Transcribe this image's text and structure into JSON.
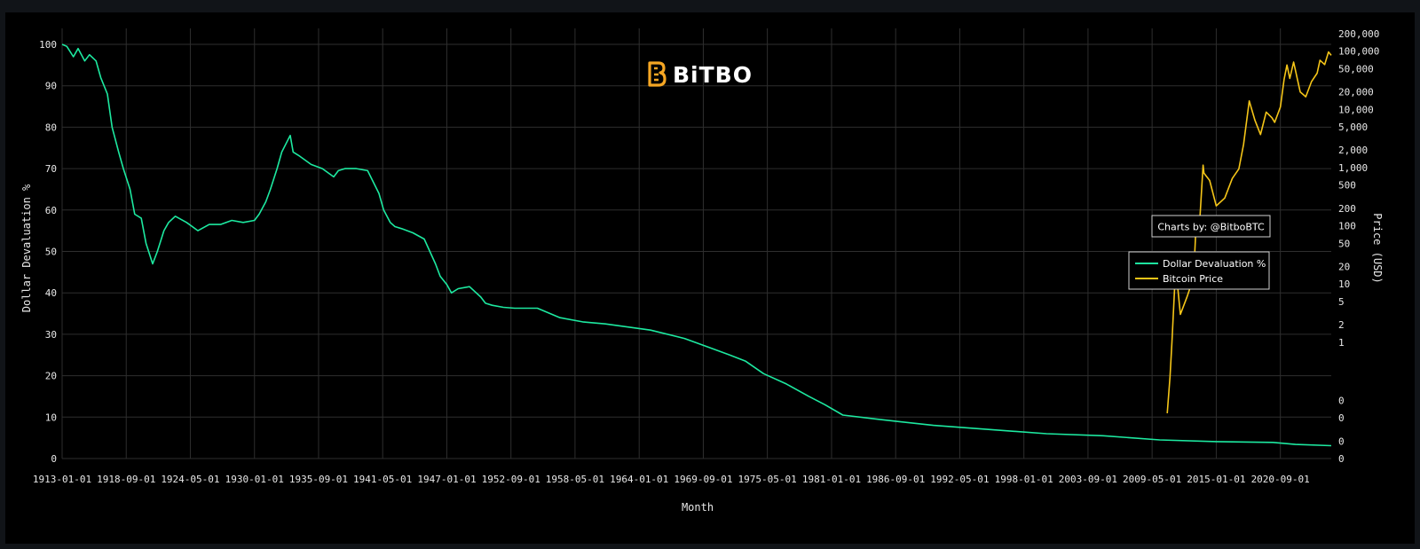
{
  "brand": {
    "name": "BiTBO"
  },
  "credit": "Charts by: @BitboBTC",
  "colors": {
    "background": "#000000",
    "page": "#111418",
    "devaluation": "#1de9a0",
    "bitcoin": "#f5c518",
    "grid": "#2e2e2e",
    "text": "#e8e8e8"
  },
  "chart_data": {
    "type": "line",
    "xlabel": "Month",
    "ylabel": "Dollar Devaluation %",
    "y2label": "Price (USD)",
    "grid": true,
    "legend_position": "right-middle",
    "x_range": [
      "1913-01-01",
      "2025-03-01"
    ],
    "x_ticks": [
      "1913-01-01",
      "1918-09-01",
      "1924-05-01",
      "1930-01-01",
      "1935-09-01",
      "1941-05-01",
      "1947-01-01",
      "1952-09-01",
      "1958-05-01",
      "1964-01-01",
      "1969-09-01",
      "1975-05-01",
      "1981-01-01",
      "1986-09-01",
      "1992-05-01",
      "1998-01-01",
      "2003-09-01",
      "2009-05-01",
      "2015-01-01",
      "2020-09-01"
    ],
    "y_range": [
      0,
      100
    ],
    "y_ticks": [
      "0",
      "10",
      "20",
      "30",
      "40",
      "50",
      "60",
      "70",
      "80",
      "90",
      "100"
    ],
    "y2_scale": "log",
    "y2_ticks": [
      "0",
      "0",
      "0",
      "0",
      "1",
      "2",
      "5",
      "10",
      "20",
      "50",
      "100",
      "200",
      "500",
      "1,000",
      "2,000",
      "5,000",
      "10,000",
      "20,000",
      "50,000",
      "100,000",
      "200,000"
    ],
    "series": [
      {
        "name": "Dollar Devaluation %",
        "axis": "left",
        "x": [
          "1913-01-01",
          "1913-06-01",
          "1914-01-01",
          "1914-06-01",
          "1915-01-01",
          "1915-06-01",
          "1916-01-01",
          "1916-06-01",
          "1917-01-01",
          "1917-06-01",
          "1918-01-01",
          "1918-06-01",
          "1919-01-01",
          "1919-06-01",
          "1920-01-01",
          "1920-06-01",
          "1921-01-01",
          "1921-06-01",
          "1922-01-01",
          "1922-06-01",
          "1923-01-01",
          "1924-01-01",
          "1925-01-01",
          "1926-01-01",
          "1927-01-01",
          "1928-01-01",
          "1929-01-01",
          "1930-01-01",
          "1930-06-01",
          "1931-01-01",
          "1931-06-01",
          "1932-01-01",
          "1932-06-01",
          "1933-03-01",
          "1933-06-01",
          "1934-01-01",
          "1935-01-01",
          "1936-01-01",
          "1937-01-01",
          "1937-06-01",
          "1938-01-01",
          "1939-01-01",
          "1940-01-01",
          "1941-01-01",
          "1941-06-01",
          "1942-01-01",
          "1942-06-01",
          "1943-01-01",
          "1944-01-01",
          "1945-01-01",
          "1946-01-01",
          "1946-06-01",
          "1947-01-01",
          "1947-06-01",
          "1948-01-01",
          "1949-01-01",
          "1950-01-01",
          "1950-06-01",
          "1951-01-01",
          "1952-01-01",
          "1953-01-01",
          "1955-01-01",
          "1957-01-01",
          "1959-01-01",
          "1961-01-01",
          "1965-01-01",
          "1968-01-01",
          "1970-01-01",
          "1972-01-01",
          "1973-06-01",
          "1975-01-01",
          "1977-01-01",
          "1979-01-01",
          "1980-06-01",
          "1982-01-01",
          "1985-01-01",
          "1990-01-01",
          "1995-01-01",
          "2000-01-01",
          "2005-01-01",
          "2010-01-01",
          "2015-01-01",
          "2020-01-01",
          "2022-01-01",
          "2025-03-01"
        ],
        "y": [
          100,
          99.5,
          97,
          99,
          96,
          97.5,
          96,
          92,
          88,
          80,
          74,
          70,
          65,
          59,
          58,
          52,
          47,
          50,
          55,
          57,
          58.5,
          57,
          55,
          56.5,
          56.5,
          57.5,
          57,
          57.5,
          59,
          62,
          65,
          70,
          74,
          78,
          74,
          73,
          71,
          70,
          68,
          69.5,
          70,
          70,
          69.5,
          64,
          60,
          57,
          56,
          55.5,
          54.5,
          53,
          47,
          44,
          42,
          40,
          41,
          41.5,
          39,
          37.5,
          37,
          36.5,
          36.3,
          36.3,
          34,
          33,
          32.5,
          31,
          29,
          27,
          25,
          23.5,
          20.5,
          18,
          15,
          13,
          10.5,
          9.5,
          8,
          7,
          6,
          5.5,
          4.5,
          4.1,
          3.9,
          3.4,
          3.1
        ]
      },
      {
        "name": "Bitcoin Price",
        "axis": "right",
        "x": [
          "2010-09-01",
          "2010-12-01",
          "2011-02-01",
          "2011-06-01",
          "2011-11-01",
          "2012-06-01",
          "2013-01-01",
          "2013-04-01",
          "2013-07-01",
          "2013-11-01",
          "2013-12-01",
          "2014-06-01",
          "2015-01-01",
          "2015-10-01",
          "2016-06-01",
          "2017-01-01",
          "2017-06-01",
          "2017-12-01",
          "2018-06-01",
          "2018-12-01",
          "2019-06-01",
          "2019-12-01",
          "2020-03-01",
          "2020-09-01",
          "2021-01-01",
          "2021-04-01",
          "2021-07-01",
          "2021-11-01",
          "2022-06-01",
          "2022-12-01",
          "2023-06-01",
          "2023-12-01",
          "2024-03-01",
          "2024-08-01",
          "2024-12-01",
          "2025-03-01"
        ],
        "y": [
          0.06,
          0.25,
          1,
          20,
          3,
          6,
          13,
          140,
          90,
          1100,
          800,
          600,
          220,
          300,
          650,
          950,
          2500,
          14000,
          6500,
          3700,
          9000,
          7200,
          6000,
          11000,
          33000,
          58000,
          34000,
          65000,
          20000,
          16500,
          30000,
          42000,
          70000,
          59000,
          97000,
          85000
        ]
      }
    ]
  }
}
